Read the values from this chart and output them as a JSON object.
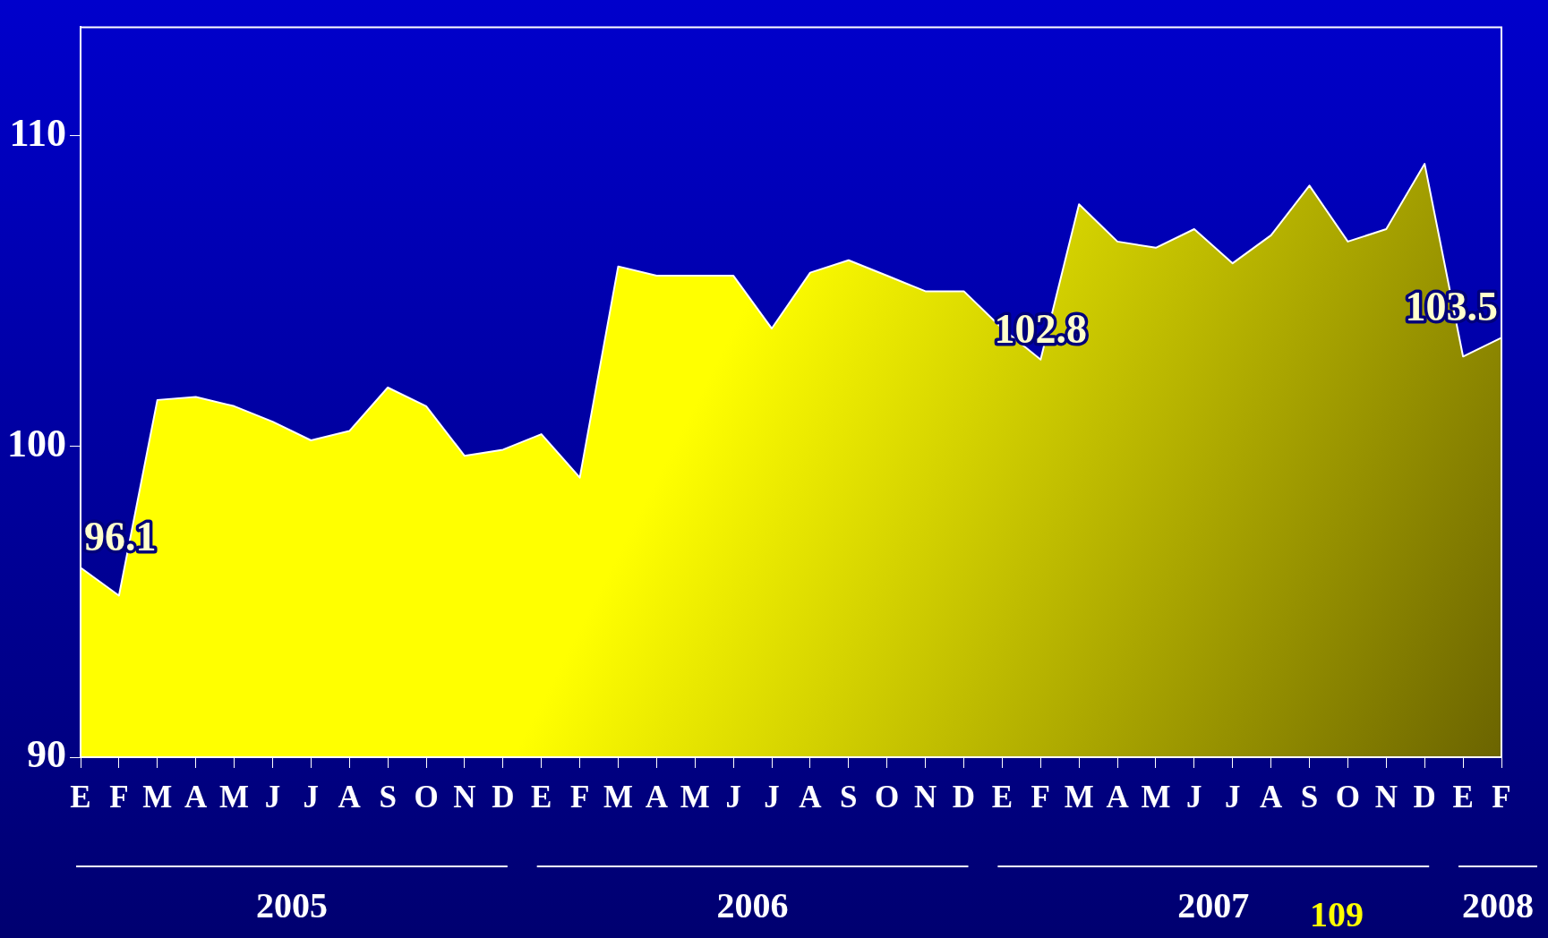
{
  "chart_data": {
    "type": "area",
    "categories": [
      "E",
      "F",
      "M",
      "A",
      "M",
      "J",
      "J",
      "A",
      "S",
      "O",
      "N",
      "D",
      "E",
      "F",
      "M",
      "A",
      "M",
      "J",
      "J",
      "A",
      "S",
      "O",
      "N",
      "D",
      "E",
      "F",
      "M",
      "A",
      "M",
      "J",
      "J",
      "A",
      "S",
      "O",
      "N",
      "D",
      "E",
      "F"
    ],
    "values": [
      96.1,
      95.2,
      101.5,
      101.6,
      101.3,
      100.8,
      100.2,
      100.5,
      101.9,
      101.3,
      99.7,
      99.9,
      100.4,
      99.0,
      105.8,
      105.5,
      105.5,
      105.5,
      103.8,
      105.6,
      106.0,
      105.5,
      105.0,
      105.0,
      103.8,
      102.8,
      107.8,
      106.6,
      106.4,
      107.0,
      105.9,
      106.8,
      108.4,
      106.6,
      107.0,
      109.1,
      102.9,
      103.5
    ],
    "value_labels": [
      "96.1",
      null,
      null,
      null,
      null,
      null,
      null,
      null,
      null,
      null,
      null,
      null,
      null,
      null,
      null,
      null,
      null,
      null,
      null,
      null,
      null,
      null,
      null,
      null,
      null,
      "102.8",
      null,
      null,
      null,
      null,
      null,
      null,
      null,
      null,
      null,
      null,
      null,
      "103.5"
    ],
    "color": "#ffff00",
    "ylim": [
      90,
      113.5
    ],
    "yticks": [
      90,
      100,
      110
    ],
    "annotations": [
      "2005",
      "2006",
      "2007",
      "2008",
      "109"
    ]
  }
}
